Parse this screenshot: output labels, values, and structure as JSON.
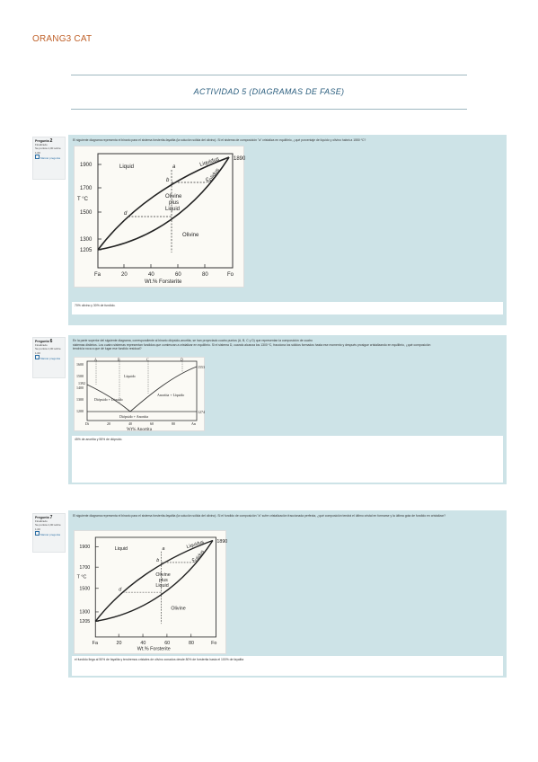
{
  "header": {
    "brand": "ORANG3 CAT",
    "title": "ACTIVIDAD 5 (DIAGRAMAS DE FASE)"
  },
  "questions": [
    {
      "label": "Pregunta",
      "number": "2",
      "status": "Finalizado",
      "score": "Se puntúa 1,00 sobre 1,00",
      "flag": "Marcar pregunta",
      "text": "El siguiente diagrama representa el binario para el sistema forsterita-fayalita (la solución sólida del olivino). Si el sistema de composición \"a\" cristaliza en equilibrio, ¿qué porcentaje de líquido y olivino habrá a 1550 ºC?",
      "answer": "70% olivino y 30% de fundido."
    },
    {
      "label": "Pregunta",
      "number": "6",
      "status": "Finalizado",
      "score": "Se puntúa 1,00 sobre 1,00",
      "flag": "Marcar pregunta",
      "text_line1": "En la parte superior del siguiente diagrama, correspondiente al binario diópsido-anortita, se han proyectado cuatro puntos (A, B, C y D) que representan la composición de cuatro",
      "text_line2": "sistemas distintos. Los cuatro sistemas representan fundidos que comienzan a cristalizar en equilibrio. Si el sistema D, cuando alcanza los 1300 ºC, fracciona los sólidos formados hasta ese momento y después prosigue cristalizando en equilibrio, ¿qué composición",
      "text_line3": "tendrá la roca a que dé lugar ese fundido residual?",
      "answer": "45% de anortita y 55% de diópsido."
    },
    {
      "label": "Pregunta",
      "number": "7",
      "status": "Finalizado",
      "score": "Se puntúa 1,00 sobre 1,00",
      "flag": "Marcar pregunta",
      "text": "El siguiente diagrama representa el binario para el sistema forsterita-fayalita (la solución sólida del olivino). Si el fundido de composición \"a\" sufre cristalización fraccionada perfecta, ¿qué composición tendrá el último cristal en formarse y la última gota de fundido en cristalizar?",
      "answer": "el fundido llega al 50% de fayalita y tendremos cristales de olivino zonados desde 80% de forsterita hasta el 100% de fayalita"
    }
  ],
  "fo_fa_diagram": {
    "ylabel": "T °C",
    "xlabel": "Wt.% Forsterite",
    "y_ticks": [
      "1900",
      "1700",
      "1500",
      "1300",
      "1205"
    ],
    "x_ticks": [
      "Fa",
      "20",
      "40",
      "60",
      "80",
      "Fo"
    ],
    "right_label": "1890",
    "region_liquid": "Liquid",
    "region_olivine_plus_liquid_1": "Olivine",
    "region_olivine_plus_liquid_2": "plus",
    "region_olivine_plus_liquid_3": "Liquid",
    "region_olivine": "Olivine",
    "liquidus": "Liquidus",
    "solidus": "Solidus",
    "points": [
      "a",
      "b",
      "c",
      "d"
    ]
  },
  "di_an_diagram": {
    "xlabel": "Wt% Anortita",
    "y_ticks": [
      "1600",
      "1500",
      "1400",
      "1300",
      "1200"
    ],
    "x_ticks": [
      "Di",
      "20",
      "40",
      "60",
      "80",
      "An"
    ],
    "left_temp": "1392",
    "right_temp_top": "1553",
    "eutectic_temp": "1274",
    "points": [
      "A",
      "B",
      "C",
      "D"
    ],
    "region_liquid": "Líquido",
    "region_di_liq": "Diópsido + Líquido",
    "region_an_liq": "Anortita + Líquido",
    "region_solid": "Diópsido + Anortita"
  }
}
